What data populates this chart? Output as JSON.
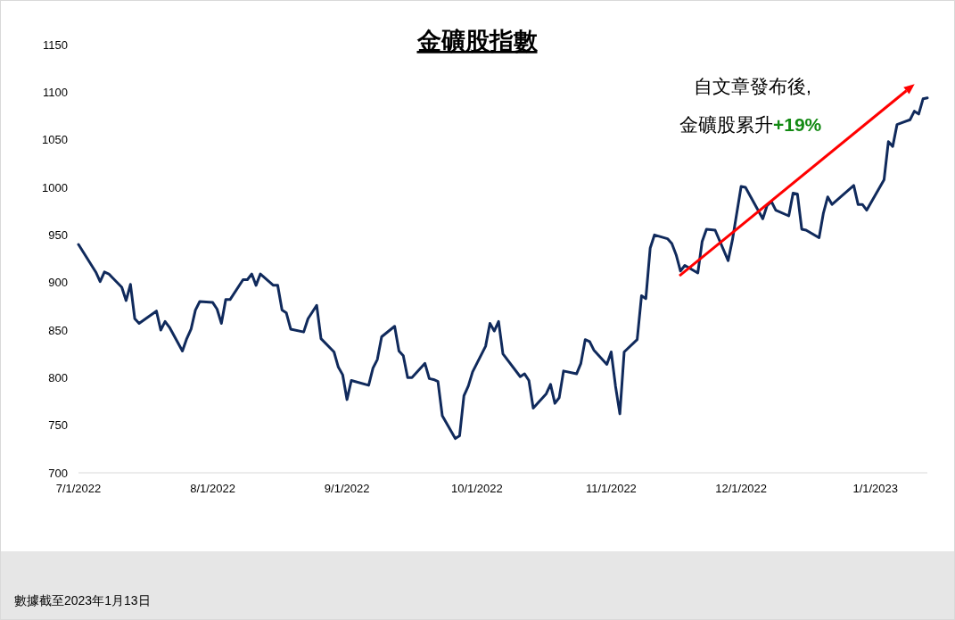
{
  "chart_data": {
    "type": "line",
    "title": "金礦股指數",
    "x": [
      "2022-07-01",
      "2022-07-05",
      "2022-07-06",
      "2022-07-07",
      "2022-07-08",
      "2022-07-11",
      "2022-07-12",
      "2022-07-13",
      "2022-07-14",
      "2022-07-15",
      "2022-07-19",
      "2022-07-20",
      "2022-07-21",
      "2022-07-22",
      "2022-07-25",
      "2022-07-26",
      "2022-07-27",
      "2022-07-28",
      "2022-07-29",
      "2022-08-01",
      "2022-08-02",
      "2022-08-03",
      "2022-08-04",
      "2022-08-05",
      "2022-08-08",
      "2022-08-09",
      "2022-08-10",
      "2022-08-11",
      "2022-08-12",
      "2022-08-15",
      "2022-08-16",
      "2022-08-17",
      "2022-08-18",
      "2022-08-19",
      "2022-08-22",
      "2022-08-23",
      "2022-08-24",
      "2022-08-25",
      "2022-08-26",
      "2022-08-29",
      "2022-08-30",
      "2022-08-31",
      "2022-09-01",
      "2022-09-02",
      "2022-09-06",
      "2022-09-07",
      "2022-09-08",
      "2022-09-09",
      "2022-09-12",
      "2022-09-13",
      "2022-09-14",
      "2022-09-15",
      "2022-09-16",
      "2022-09-19",
      "2022-09-20",
      "2022-09-21",
      "2022-09-22",
      "2022-09-23",
      "2022-09-26",
      "2022-09-27",
      "2022-09-28",
      "2022-09-29",
      "2022-09-30",
      "2022-10-03",
      "2022-10-04",
      "2022-10-05",
      "2022-10-06",
      "2022-10-07",
      "2022-10-11",
      "2022-10-12",
      "2022-10-13",
      "2022-10-14",
      "2022-10-17",
      "2022-10-18",
      "2022-10-19",
      "2022-10-20",
      "2022-10-21",
      "2022-10-24",
      "2022-10-25",
      "2022-10-26",
      "2022-10-27",
      "2022-10-28",
      "2022-10-31",
      "2022-11-01",
      "2022-11-02",
      "2022-11-03",
      "2022-11-04",
      "2022-11-07",
      "2022-11-08",
      "2022-11-09",
      "2022-11-10",
      "2022-11-11",
      "2022-11-14",
      "2022-11-15",
      "2022-11-16",
      "2022-11-17",
      "2022-11-18",
      "2022-11-21",
      "2022-11-22",
      "2022-11-23",
      "2022-11-25",
      "2022-11-28",
      "2022-11-29",
      "2022-12-01",
      "2022-12-02",
      "2022-12-06",
      "2022-12-07",
      "2022-12-08",
      "2022-12-09",
      "2022-12-12",
      "2022-12-13",
      "2022-12-14",
      "2022-12-15",
      "2022-12-16",
      "2022-12-19",
      "2022-12-20",
      "2022-12-21",
      "2022-12-22",
      "2022-12-27",
      "2022-12-28",
      "2022-12-29",
      "2022-12-30",
      "2023-01-03",
      "2023-01-04",
      "2023-01-05",
      "2023-01-06",
      "2023-01-09",
      "2023-01-10",
      "2023-01-11",
      "2023-01-12",
      "2023-01-13"
    ],
    "series": [
      {
        "color": "#102a5c",
        "values": [
          940,
          911,
          901,
          911,
          909,
          895,
          881,
          898,
          862,
          857,
          870,
          850,
          859,
          853,
          828,
          841,
          851,
          871,
          880,
          879,
          872,
          857,
          882,
          882,
          903,
          903,
          909,
          897,
          909,
          897,
          897,
          871,
          868,
          851,
          848,
          862,
          869,
          876,
          841,
          827,
          811,
          803,
          777,
          797,
          792,
          810,
          819,
          843,
          854,
          828,
          823,
          800,
          800,
          815,
          799,
          798,
          796,
          760,
          736,
          739,
          781,
          791,
          806,
          833,
          857,
          849,
          859,
          825,
          801,
          804,
          797,
          768,
          783,
          793,
          773,
          779,
          807,
          804,
          815,
          840,
          838,
          829,
          814,
          827,
          791,
          762,
          827,
          840,
          886,
          883,
          936,
          950,
          946,
          941,
          929,
          912,
          918,
          910,
          943,
          956,
          955,
          923,
          945,
          1001,
          1000,
          967,
          981,
          985,
          976,
          970,
          994,
          993,
          956,
          955,
          947,
          973,
          990,
          982,
          1002,
          982,
          982,
          976,
          1008,
          1048,
          1043,
          1066,
          1071,
          1080,
          1077,
          1093,
          1094
        ]
      }
    ],
    "xlim": [
      "2022-07-01",
      "2023-01-13"
    ],
    "xticks": [
      {
        "value": "2022-07-01",
        "label": "7/1/2022"
      },
      {
        "value": "2022-08-01",
        "label": "8/1/2022"
      },
      {
        "value": "2022-09-01",
        "label": "9/1/2022"
      },
      {
        "value": "2022-10-01",
        "label": "10/1/2022"
      },
      {
        "value": "2022-11-01",
        "label": "11/1/2022"
      },
      {
        "value": "2022-12-01",
        "label": "12/1/2022"
      },
      {
        "value": "2023-01-01",
        "label": "1/1/2023"
      }
    ],
    "ylim": [
      700,
      1150
    ],
    "yticks": [
      700,
      750,
      800,
      850,
      900,
      950,
      1000,
      1050,
      1100,
      1150
    ],
    "grid": false,
    "marker": "none",
    "line_style": "solid",
    "annotations": [
      "自文章發布後,",
      "金礦股累升**+19%**",
      "數據截至2023年1月13日"
    ]
  }
}
